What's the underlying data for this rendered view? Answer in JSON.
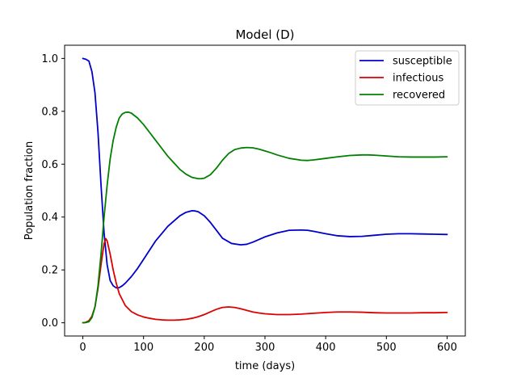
{
  "chart_data": {
    "type": "line",
    "title": "Model (D)",
    "xlabel": "time (days)",
    "ylabel": "Population fraction",
    "xlim": [
      -30,
      630
    ],
    "ylim": [
      -0.05,
      1.05
    ],
    "xticks": [
      0,
      100,
      200,
      300,
      400,
      500,
      600
    ],
    "yticks": [
      0.0,
      0.2,
      0.4,
      0.6,
      0.8,
      1.0
    ],
    "xtick_labels": [
      "0",
      "100",
      "200",
      "300",
      "400",
      "500",
      "600"
    ],
    "ytick_labels": [
      "0.0",
      "0.2",
      "0.4",
      "0.6",
      "0.8",
      "1.0"
    ],
    "grid": false,
    "legend_position": "top-right",
    "series": [
      {
        "name": "susceptible",
        "color": "#0000cc",
        "x": [
          0,
          5,
          10,
          15,
          20,
          25,
          30,
          35,
          40,
          45,
          50,
          55,
          60,
          65,
          70,
          80,
          90,
          100,
          120,
          140,
          160,
          170,
          180,
          185,
          190,
          200,
          210,
          220,
          230,
          245,
          260,
          270,
          280,
          300,
          320,
          340,
          360,
          370,
          380,
          400,
          420,
          440,
          460,
          480,
          500,
          520,
          540,
          560,
          580,
          600
        ],
        "y": [
          1.0,
          0.997,
          0.99,
          0.95,
          0.87,
          0.72,
          0.52,
          0.34,
          0.22,
          0.16,
          0.14,
          0.132,
          0.133,
          0.14,
          0.15,
          0.175,
          0.205,
          0.24,
          0.31,
          0.365,
          0.405,
          0.418,
          0.424,
          0.423,
          0.42,
          0.405,
          0.38,
          0.35,
          0.32,
          0.3,
          0.295,
          0.297,
          0.305,
          0.325,
          0.34,
          0.35,
          0.351,
          0.35,
          0.346,
          0.337,
          0.329,
          0.326,
          0.327,
          0.331,
          0.335,
          0.337,
          0.337,
          0.336,
          0.335,
          0.334
        ]
      },
      {
        "name": "infectious",
        "color": "#dd0000",
        "x": [
          0,
          5,
          10,
          15,
          20,
          25,
          30,
          35,
          38,
          40,
          45,
          50,
          55,
          60,
          70,
          80,
          90,
          100,
          110,
          120,
          130,
          140,
          150,
          160,
          170,
          180,
          190,
          200,
          210,
          220,
          230,
          240,
          250,
          260,
          270,
          280,
          290,
          300,
          320,
          340,
          360,
          380,
          400,
          420,
          440,
          460,
          480,
          500,
          520,
          540,
          560,
          580,
          600
        ],
        "y": [
          0.0,
          0.002,
          0.008,
          0.025,
          0.06,
          0.13,
          0.22,
          0.3,
          0.318,
          0.31,
          0.26,
          0.2,
          0.15,
          0.11,
          0.065,
          0.042,
          0.03,
          0.022,
          0.017,
          0.013,
          0.011,
          0.01,
          0.01,
          0.011,
          0.013,
          0.017,
          0.023,
          0.031,
          0.041,
          0.051,
          0.058,
          0.06,
          0.058,
          0.053,
          0.047,
          0.041,
          0.037,
          0.034,
          0.031,
          0.031,
          0.033,
          0.036,
          0.039,
          0.041,
          0.041,
          0.04,
          0.038,
          0.037,
          0.037,
          0.037,
          0.038,
          0.038,
          0.039
        ]
      },
      {
        "name": "recovered",
        "color": "#008000",
        "x": [
          0,
          5,
          10,
          15,
          20,
          25,
          30,
          35,
          40,
          45,
          50,
          55,
          60,
          65,
          70,
          75,
          80,
          90,
          100,
          110,
          120,
          130,
          140,
          150,
          160,
          170,
          180,
          190,
          195,
          200,
          210,
          220,
          230,
          240,
          250,
          260,
          270,
          280,
          290,
          300,
          310,
          320,
          340,
          360,
          370,
          380,
          390,
          400,
          420,
          440,
          460,
          470,
          480,
          500,
          520,
          540,
          560,
          580,
          600
        ],
        "y": [
          0.0,
          0.001,
          0.004,
          0.02,
          0.06,
          0.14,
          0.26,
          0.4,
          0.52,
          0.62,
          0.69,
          0.74,
          0.775,
          0.79,
          0.796,
          0.797,
          0.793,
          0.775,
          0.75,
          0.72,
          0.69,
          0.66,
          0.63,
          0.605,
          0.58,
          0.562,
          0.55,
          0.545,
          0.545,
          0.547,
          0.56,
          0.585,
          0.615,
          0.64,
          0.655,
          0.661,
          0.663,
          0.662,
          0.657,
          0.65,
          0.643,
          0.635,
          0.622,
          0.615,
          0.614,
          0.616,
          0.619,
          0.622,
          0.628,
          0.633,
          0.635,
          0.635,
          0.634,
          0.631,
          0.628,
          0.627,
          0.627,
          0.627,
          0.628
        ]
      }
    ]
  }
}
